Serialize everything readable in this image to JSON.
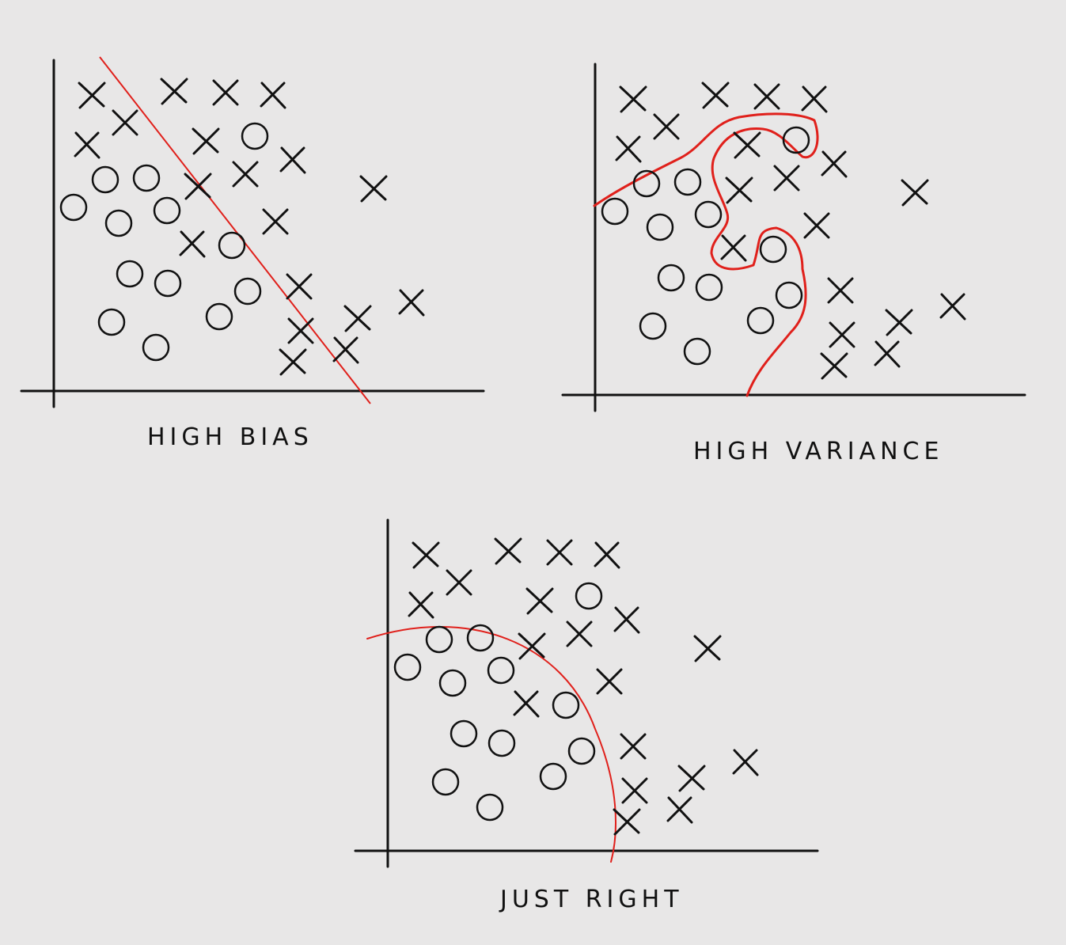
{
  "colors": {
    "background": "#e8e7e7",
    "ink": "#111111",
    "boundary": "#e0201b"
  },
  "panels": [
    {
      "id": "high-bias",
      "label": "HIGH BIAS"
    },
    {
      "id": "high-variance",
      "label": "HIGH VARIANCE"
    },
    {
      "id": "just-right",
      "label": "JUST RIGHT"
    }
  ]
}
